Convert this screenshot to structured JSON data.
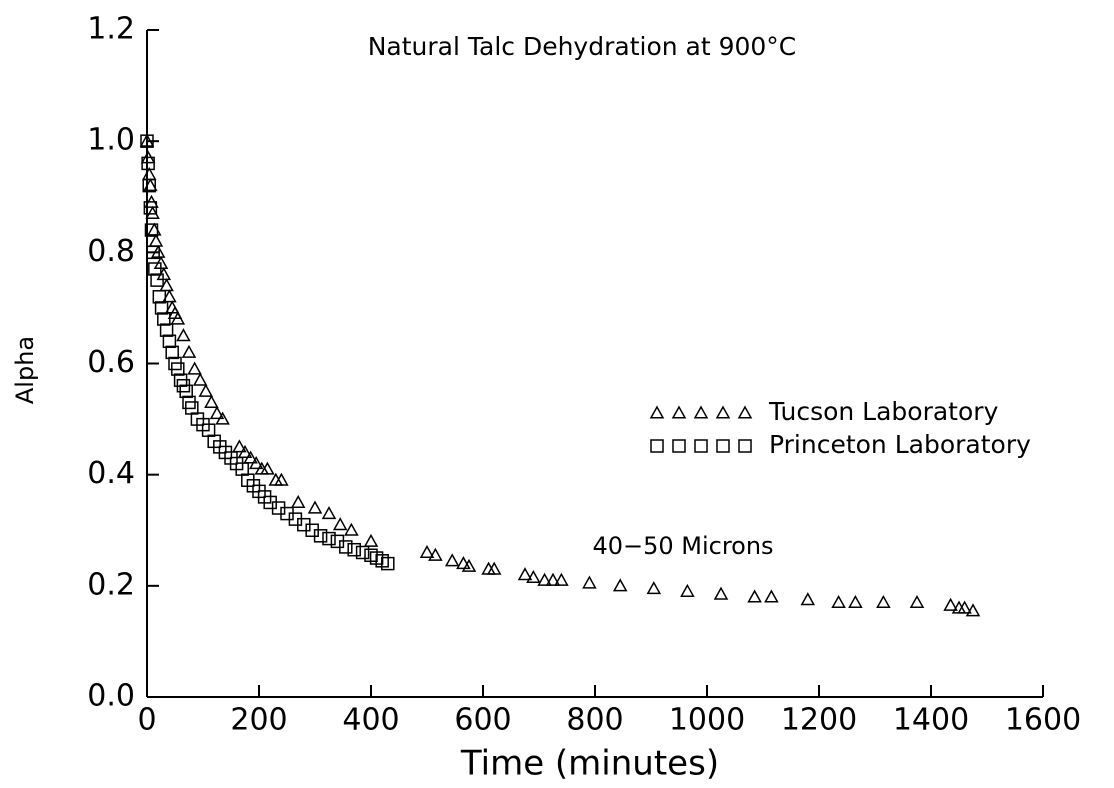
{
  "chart_data": {
    "type": "scatter",
    "title": "Natural Talc Dehydration at 900°C",
    "annotation": "40−50 Microns",
    "xlabel": "Time (minutes)",
    "ylabel": "Alpha",
    "xlim": [
      0,
      1600
    ],
    "ylim": [
      0,
      1.2
    ],
    "xticks": [
      0,
      200,
      400,
      600,
      800,
      1000,
      1200,
      1400,
      1600
    ],
    "yticks": [
      {
        "value": 0,
        "label": "0.0"
      },
      0.2,
      0.4,
      0.6,
      0.8,
      {
        "value": 1,
        "label": "1.0"
      },
      1.2
    ],
    "legend": "right",
    "series": [
      {
        "name": "Tucson Laboratory",
        "marker": "triangle",
        "color": "#000000",
        "x": [
          0,
          2,
          4,
          6,
          8,
          10,
          13,
          16,
          20,
          25,
          30,
          35,
          40,
          45,
          50,
          55,
          65,
          75,
          85,
          95,
          105,
          115,
          125,
          135,
          165,
          175,
          185,
          195,
          205,
          215,
          230,
          240,
          270,
          300,
          325,
          345,
          365,
          400,
          500,
          515,
          545,
          565,
          575,
          610,
          620,
          675,
          690,
          710,
          725,
          740,
          790,
          845,
          905,
          965,
          1025,
          1085,
          1115,
          1180,
          1235,
          1265,
          1315,
          1375,
          1435,
          1450,
          1460,
          1475
        ],
        "values": [
          1.0,
          0.97,
          0.94,
          0.92,
          0.89,
          0.87,
          0.84,
          0.82,
          0.8,
          0.78,
          0.76,
          0.74,
          0.72,
          0.7,
          0.69,
          0.68,
          0.65,
          0.62,
          0.59,
          0.57,
          0.55,
          0.53,
          0.51,
          0.5,
          0.45,
          0.44,
          0.43,
          0.42,
          0.41,
          0.41,
          0.39,
          0.39,
          0.35,
          0.34,
          0.33,
          0.31,
          0.3,
          0.28,
          0.26,
          0.255,
          0.245,
          0.24,
          0.235,
          0.23,
          0.23,
          0.22,
          0.215,
          0.21,
          0.21,
          0.21,
          0.205,
          0.2,
          0.195,
          0.19,
          0.185,
          0.18,
          0.18,
          0.175,
          0.17,
          0.17,
          0.17,
          0.17,
          0.165,
          0.16,
          0.16,
          0.155
        ]
      },
      {
        "name": "Princeton Laboratory",
        "marker": "square",
        "color": "#000000",
        "x": [
          0,
          2,
          4,
          6,
          8,
          11,
          14,
          18,
          22,
          26,
          30,
          35,
          40,
          45,
          50,
          55,
          60,
          65,
          70,
          75,
          80,
          90,
          100,
          110,
          120,
          130,
          140,
          150,
          160,
          170,
          180,
          190,
          200,
          210,
          220,
          235,
          250,
          265,
          280,
          295,
          310,
          325,
          340,
          355,
          370,
          385,
          400,
          410,
          420,
          430
        ],
        "values": [
          1.0,
          0.96,
          0.92,
          0.88,
          0.84,
          0.8,
          0.77,
          0.75,
          0.72,
          0.7,
          0.68,
          0.66,
          0.64,
          0.62,
          0.6,
          0.59,
          0.57,
          0.56,
          0.55,
          0.53,
          0.52,
          0.5,
          0.49,
          0.48,
          0.46,
          0.45,
          0.44,
          0.43,
          0.42,
          0.41,
          0.39,
          0.38,
          0.37,
          0.36,
          0.35,
          0.34,
          0.33,
          0.32,
          0.31,
          0.3,
          0.29,
          0.285,
          0.28,
          0.27,
          0.265,
          0.26,
          0.255,
          0.25,
          0.245,
          0.24
        ]
      }
    ]
  }
}
